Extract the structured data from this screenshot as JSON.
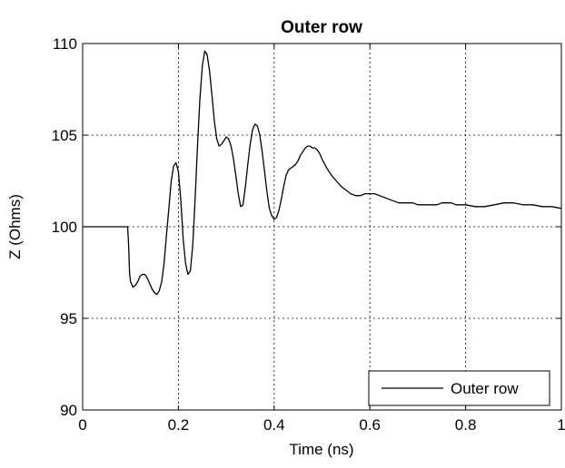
{
  "chart_data": {
    "type": "line",
    "title": "Outer row",
    "xlabel": "Time (ns)",
    "ylabel": "Z (Ohms)",
    "xlim": [
      0,
      1
    ],
    "ylim": [
      90,
      110
    ],
    "xticks": [
      0,
      0.2,
      0.4,
      0.6,
      0.8,
      1
    ],
    "xtick_labels": [
      "0",
      "0.2",
      "0.4",
      "0.6",
      "0.8",
      "1"
    ],
    "yticks": [
      90,
      95,
      100,
      105,
      110
    ],
    "ytick_labels": [
      "90",
      "95",
      "100",
      "105",
      "110"
    ],
    "grid": true,
    "legend_position": "bottom-right",
    "series": [
      {
        "name": "Outer row",
        "color": "#000000",
        "x": [
          0,
          0.094,
          0.096,
          0.098,
          0.1,
          0.105,
          0.11,
          0.115,
          0.12,
          0.125,
          0.13,
          0.135,
          0.14,
          0.145,
          0.15,
          0.155,
          0.16,
          0.165,
          0.17,
          0.175,
          0.18,
          0.185,
          0.19,
          0.195,
          0.2,
          0.205,
          0.21,
          0.215,
          0.22,
          0.225,
          0.23,
          0.235,
          0.24,
          0.245,
          0.25,
          0.255,
          0.26,
          0.265,
          0.27,
          0.275,
          0.28,
          0.285,
          0.29,
          0.295,
          0.3,
          0.305,
          0.31,
          0.315,
          0.32,
          0.325,
          0.33,
          0.335,
          0.34,
          0.345,
          0.35,
          0.355,
          0.36,
          0.365,
          0.37,
          0.375,
          0.38,
          0.385,
          0.39,
          0.395,
          0.4,
          0.405,
          0.41,
          0.415,
          0.42,
          0.425,
          0.43,
          0.435,
          0.44,
          0.445,
          0.45,
          0.455,
          0.46,
          0.465,
          0.47,
          0.475,
          0.48,
          0.485,
          0.49,
          0.495,
          0.5,
          0.51,
          0.52,
          0.53,
          0.54,
          0.55,
          0.56,
          0.57,
          0.58,
          0.59,
          0.6,
          0.61,
          0.62,
          0.63,
          0.64,
          0.65,
          0.66,
          0.67,
          0.68,
          0.69,
          0.7,
          0.71,
          0.72,
          0.73,
          0.74,
          0.75,
          0.76,
          0.77,
          0.78,
          0.8,
          0.82,
          0.84,
          0.86,
          0.88,
          0.9,
          0.92,
          0.94,
          0.96,
          0.98,
          1.0
        ],
        "y": [
          100,
          100,
          99.0,
          97.5,
          97.0,
          96.7,
          96.8,
          97.0,
          97.3,
          97.4,
          97.4,
          97.2,
          96.9,
          96.6,
          96.4,
          96.3,
          96.5,
          97.0,
          98.0,
          99.5,
          101.0,
          102.5,
          103.3,
          103.5,
          103.0,
          101.5,
          99.3,
          98.0,
          97.4,
          97.6,
          99.0,
          101.5,
          104.5,
          107.0,
          108.8,
          109.6,
          109.4,
          108.5,
          107.2,
          105.8,
          104.8,
          104.4,
          104.5,
          104.7,
          104.9,
          104.8,
          104.4,
          103.7,
          102.8,
          101.8,
          101.1,
          101.2,
          102.2,
          103.4,
          104.5,
          105.3,
          105.6,
          105.5,
          105.0,
          104.1,
          103.0,
          101.9,
          101.0,
          100.6,
          100.4,
          100.5,
          100.9,
          101.5,
          102.2,
          102.8,
          103.1,
          103.2,
          103.3,
          103.4,
          103.6,
          103.9,
          104.1,
          104.3,
          104.4,
          104.4,
          104.3,
          104.3,
          104.2,
          104.0,
          103.7,
          103.2,
          102.8,
          102.5,
          102.2,
          102.0,
          101.8,
          101.7,
          101.7,
          101.8,
          101.8,
          101.8,
          101.7,
          101.6,
          101.5,
          101.4,
          101.3,
          101.3,
          101.3,
          101.3,
          101.2,
          101.2,
          101.2,
          101.2,
          101.2,
          101.3,
          101.3,
          101.3,
          101.2,
          101.2,
          101.1,
          101.1,
          101.2,
          101.3,
          101.3,
          101.2,
          101.2,
          101.1,
          101.1,
          101.0
        ]
      }
    ]
  }
}
